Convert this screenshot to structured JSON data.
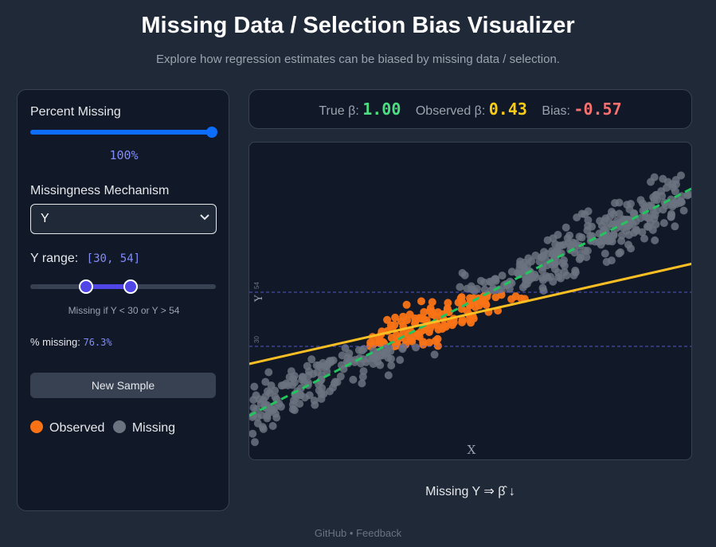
{
  "header": {
    "title": "Missing Data / Selection Bias Visualizer",
    "subtitle": "Explore how regression estimates can be biased by missing data / selection."
  },
  "controls": {
    "percent_missing_label": "Percent Missing",
    "percent_missing_value": "100%",
    "percent_missing_fraction": 1.0,
    "mechanism_label": "Missingness Mechanism",
    "mechanism_value": "Y",
    "y_range_label": "Y range:",
    "y_range_value": "[30, 54]",
    "y_range_low": 30,
    "y_range_high": 54,
    "y_slider_min": 0,
    "y_slider_max": 100,
    "missing_hint": "Missing if Y < 30 or Y > 54",
    "pct_missing_label": "% missing:",
    "pct_missing_value": "76.3%",
    "new_sample_label": "New Sample"
  },
  "legend": {
    "observed_label": "Observed",
    "missing_label": "Missing",
    "observed_color": "#f97316",
    "missing_color": "#6b7280"
  },
  "stats": {
    "true_beta_label": "True β:",
    "true_beta_value": "1.00",
    "observed_beta_label": "Observed β:",
    "observed_beta_value": "0.43",
    "bias_label": "Bias:",
    "bias_value": "-0.57",
    "true_color": "#4ade80",
    "observed_color": "#facc15",
    "bias_color": "#f87171"
  },
  "plot": {
    "x_axis_label": "X",
    "y_axis_label": "Y",
    "y_line_high_label": "54",
    "y_line_low_label": "30",
    "true_line_color": "#22c55e",
    "observed_line_color": "#fbbf24",
    "threshold_line_color": "#6366f1"
  },
  "caption": "Missing Y ⇒ β̂ ↓",
  "footer": "GitHub • Feedback"
}
